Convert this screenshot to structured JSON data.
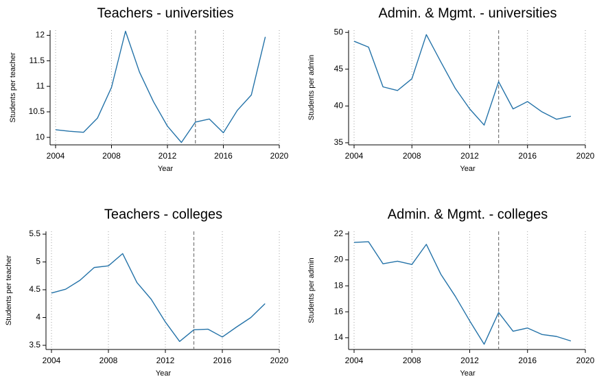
{
  "chart_data": [
    {
      "type": "line",
      "title": "Teachers - universities",
      "xlabel": "Year",
      "ylabel": "Students per teacher",
      "x": [
        2004,
        2005,
        2006,
        2007,
        2008,
        2009,
        2010,
        2011,
        2012,
        2013,
        2014,
        2015,
        2016,
        2017,
        2018,
        2019
      ],
      "values": [
        10.15,
        10.12,
        10.1,
        10.38,
        10.98,
        12.08,
        11.28,
        10.7,
        10.22,
        9.9,
        10.3,
        10.36,
        10.09,
        10.53,
        10.83,
        11.97
      ],
      "color": "#2372a8",
      "xlim": [
        2004,
        2020
      ],
      "xticks": [
        2004,
        2008,
        2012,
        2016,
        2020
      ],
      "ylim": [
        9.88,
        12.1
      ],
      "yticks": [
        10,
        10.5,
        11,
        11.5,
        12
      ],
      "grid": true,
      "reference_x": 2014
    },
    {
      "type": "line",
      "title": "Admin. & Mgmt. - universities",
      "xlabel": "Year",
      "ylabel": "Students per admin",
      "x": [
        2004,
        2005,
        2006,
        2007,
        2008,
        2009,
        2010,
        2011,
        2012,
        2013,
        2014,
        2015,
        2016,
        2017,
        2018,
        2019
      ],
      "values": [
        48.8,
        48.0,
        42.6,
        42.1,
        43.7,
        49.7,
        46.0,
        42.4,
        39.6,
        37.4,
        43.3,
        39.6,
        40.6,
        39.2,
        38.2,
        38.6
      ],
      "color": "#2372a8",
      "xlim": [
        2004,
        2020
      ],
      "xticks": [
        2004,
        2008,
        2012,
        2016,
        2020
      ],
      "ylim": [
        34.9,
        50.3
      ],
      "yticks": [
        35,
        40,
        45,
        50
      ],
      "grid": true,
      "reference_x": 2014
    },
    {
      "type": "line",
      "title": "Teachers - colleges",
      "xlabel": "Year",
      "ylabel": "Students per teacher",
      "x": [
        2004,
        2005,
        2006,
        2007,
        2008,
        2009,
        2010,
        2011,
        2012,
        2013,
        2014,
        2015,
        2016,
        2017,
        2018,
        2019
      ],
      "values": [
        4.44,
        4.51,
        4.67,
        4.9,
        4.93,
        5.15,
        4.63,
        4.33,
        3.92,
        3.57,
        3.78,
        3.79,
        3.65,
        3.83,
        4.0,
        4.25
      ],
      "color": "#2372a8",
      "xlim": [
        2004,
        2020
      ],
      "xticks": [
        2004,
        2008,
        2012,
        2016,
        2020
      ],
      "ylim": [
        3.45,
        5.55
      ],
      "yticks": [
        3.5,
        4,
        4.5,
        5,
        5.5
      ],
      "grid": true,
      "reference_x": 2014
    },
    {
      "type": "line",
      "title": "Admin. & Mgmt. - colleges",
      "xlabel": "Year",
      "ylabel": "Students per admin",
      "x": [
        2004,
        2005,
        2006,
        2007,
        2008,
        2009,
        2010,
        2011,
        2012,
        2013,
        2014,
        2015,
        2016,
        2017,
        2018,
        2019
      ],
      "values": [
        21.35,
        21.4,
        19.7,
        19.9,
        19.65,
        21.2,
        18.9,
        17.2,
        15.3,
        13.5,
        15.95,
        14.5,
        14.75,
        14.25,
        14.1,
        13.75
      ],
      "color": "#2372a8",
      "xlim": [
        2004,
        2020
      ],
      "xticks": [
        2004,
        2008,
        2012,
        2016,
        2020
      ],
      "ylim": [
        13.2,
        22.2
      ],
      "yticks": [
        14,
        16,
        18,
        20,
        22
      ],
      "grid": true,
      "reference_x": 2014
    }
  ]
}
